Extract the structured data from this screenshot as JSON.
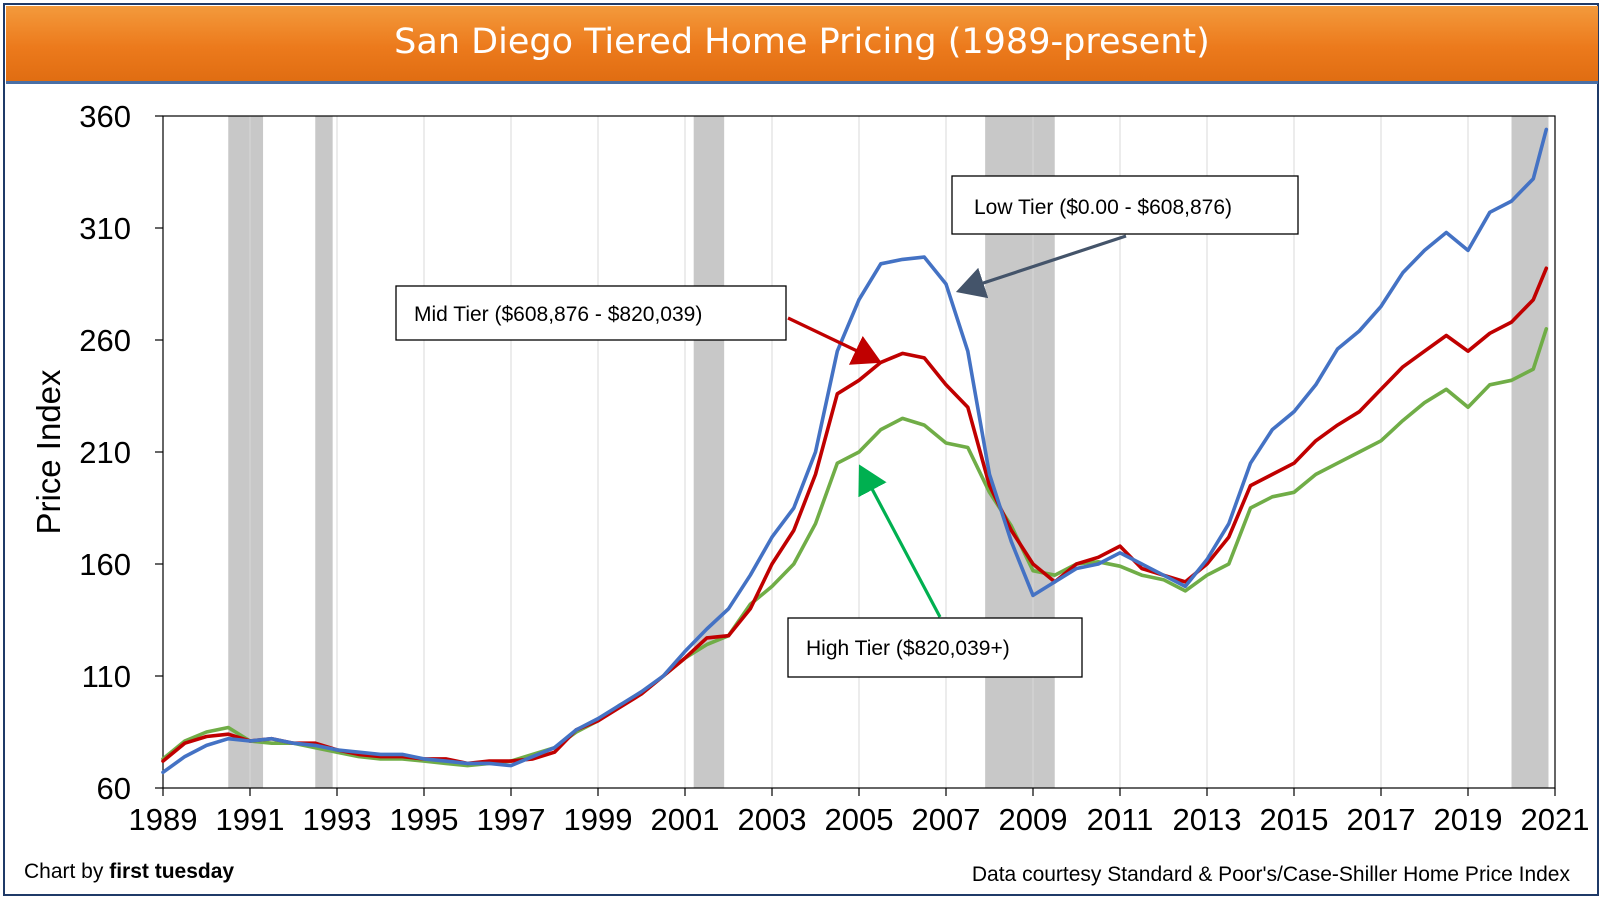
{
  "chart_data": {
    "type": "line",
    "title": "San Diego Tiered Home Pricing (1989-present)",
    "ylabel": "Price Index",
    "xlabel": "",
    "xlim": [
      1989,
      2021
    ],
    "ylim": [
      60,
      360
    ],
    "x_ticks": [
      "1989",
      "1991",
      "1993",
      "1995",
      "1997",
      "1999",
      "2001",
      "2003",
      "2005",
      "2007",
      "2009",
      "2011",
      "2013",
      "2015",
      "2017",
      "2019",
      "2021"
    ],
    "y_ticks": [
      "60",
      "110",
      "160",
      "210",
      "260",
      "310",
      "360"
    ],
    "grid": "vertical",
    "recessions": [
      [
        1990.5,
        1991.3
      ],
      [
        1992.5,
        1992.9
      ],
      [
        2001.2,
        2001.9
      ],
      [
        2007.9,
        2009.5
      ],
      [
        2020.0,
        2020.85
      ]
    ],
    "series": [
      {
        "name": "Low Tier ($0.00 - $608,876)",
        "color": "#4472c4",
        "x": [
          1989,
          1989.5,
          1990,
          1990.5,
          1991,
          1991.5,
          1992,
          1992.5,
          1993,
          1993.5,
          1994,
          1994.5,
          1995,
          1995.5,
          1996,
          1996.5,
          1997,
          1997.5,
          1998,
          1998.5,
          1999,
          1999.5,
          2000,
          2000.5,
          2001,
          2001.5,
          2002,
          2002.5,
          2003,
          2003.5,
          2004,
          2004.5,
          2005,
          2005.5,
          2006,
          2006.5,
          2007,
          2007.5,
          2008,
          2008.5,
          2009,
          2009.5,
          2010,
          2010.5,
          2011,
          2011.5,
          2012,
          2012.5,
          2013,
          2013.5,
          2014,
          2014.5,
          2015,
          2015.5,
          2016,
          2016.5,
          2017,
          2017.5,
          2018,
          2018.5,
          2019,
          2019.5,
          2020,
          2020.5,
          2020.8
        ],
        "y": [
          67,
          74,
          79,
          82,
          81,
          82,
          80,
          79,
          77,
          76,
          75,
          75,
          73,
          72,
          71,
          71,
          70,
          74,
          78,
          86,
          91,
          97,
          103,
          110,
          121,
          131,
          140,
          155,
          172,
          185,
          210,
          255,
          278,
          294,
          296,
          297,
          285,
          255,
          200,
          170,
          146,
          152,
          158,
          160,
          165,
          160,
          155,
          150,
          162,
          178,
          205,
          220,
          228,
          240,
          256,
          264,
          275,
          290,
          300,
          308,
          300,
          317,
          322,
          332,
          354
        ]
      },
      {
        "name": "Mid Tier ($608,876 - $820,039)",
        "color": "#c00000",
        "x": [
          1989,
          1989.5,
          1990,
          1990.5,
          1991,
          1991.5,
          1992,
          1992.5,
          1993,
          1993.5,
          1994,
          1994.5,
          1995,
          1995.5,
          1996,
          1996.5,
          1997,
          1997.5,
          1998,
          1998.5,
          1999,
          1999.5,
          2000,
          2000.5,
          2001,
          2001.5,
          2002,
          2002.5,
          2003,
          2003.5,
          2004,
          2004.5,
          2005,
          2005.5,
          2006,
          2006.5,
          2007,
          2007.5,
          2008,
          2008.5,
          2009,
          2009.5,
          2010,
          2010.5,
          2011,
          2011.5,
          2012,
          2012.5,
          2013,
          2013.5,
          2014,
          2014.5,
          2015,
          2015.5,
          2016,
          2016.5,
          2017,
          2017.5,
          2018,
          2018.5,
          2019,
          2019.5,
          2020,
          2020.5,
          2020.8
        ],
        "y": [
          72,
          80,
          83,
          84,
          81,
          82,
          80,
          80,
          77,
          75,
          74,
          74,
          73,
          73,
          71,
          72,
          72,
          73,
          76,
          86,
          90,
          96,
          102,
          110,
          118,
          127,
          128,
          140,
          160,
          175,
          200,
          236,
          242,
          250,
          254,
          252,
          240,
          230,
          195,
          175,
          160,
          152,
          160,
          163,
          168,
          158,
          155,
          152,
          160,
          172,
          195,
          200,
          205,
          215,
          222,
          228,
          238,
          248,
          255,
          262,
          255,
          263,
          268,
          278,
          292
        ]
      },
      {
        "name": "High Tier ($820,039+)",
        "color": "#70ad47",
        "x": [
          1989,
          1989.5,
          1990,
          1990.5,
          1991,
          1991.5,
          1992,
          1992.5,
          1993,
          1993.5,
          1994,
          1994.5,
          1995,
          1995.5,
          1996,
          1996.5,
          1997,
          1997.5,
          1998,
          1998.5,
          1999,
          1999.5,
          2000,
          2000.5,
          2001,
          2001.5,
          2002,
          2002.5,
          2003,
          2003.5,
          2004,
          2004.5,
          2005,
          2005.5,
          2006,
          2006.5,
          2007,
          2007.5,
          2008,
          2008.5,
          2009,
          2009.5,
          2010,
          2010.5,
          2011,
          2011.5,
          2012,
          2012.5,
          2013,
          2013.5,
          2014,
          2014.5,
          2015,
          2015.5,
          2016,
          2016.5,
          2017,
          2017.5,
          2018,
          2018.5,
          2019,
          2019.5,
          2020,
          2020.5,
          2020.8
        ],
        "y": [
          73,
          81,
          85,
          87,
          81,
          80,
          80,
          78,
          76,
          74,
          73,
          73,
          72,
          71,
          70,
          71,
          72,
          75,
          78,
          85,
          90,
          97,
          102,
          110,
          118,
          124,
          128,
          142,
          150,
          160,
          178,
          205,
          210,
          220,
          225,
          222,
          214,
          212,
          192,
          177,
          157,
          155,
          160,
          161,
          159,
          155,
          153,
          148,
          155,
          160,
          185,
          190,
          192,
          200,
          205,
          210,
          215,
          224,
          232,
          238,
          230,
          240,
          242,
          247,
          265
        ]
      }
    ],
    "annotations": [
      {
        "text": "Low Tier ($0.00 - $608,876)",
        "series": 0
      },
      {
        "text": "Mid Tier ($608,876 - $820,039)",
        "series": 1
      },
      {
        "text": "High Tier ($820,039+)",
        "series": 2
      }
    ]
  },
  "footer": {
    "credit_prefix": "Chart by ",
    "credit_brand": "first tuesday",
    "source": "Data courtesy Standard & Poor's/Case-Shiller Home Price Index"
  }
}
